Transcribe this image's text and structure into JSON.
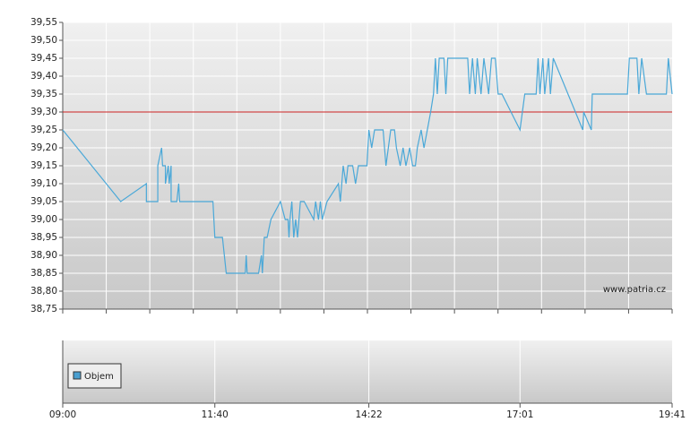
{
  "chart_data": {
    "type": "line",
    "x": [
      "09:00",
      "10:01",
      "10:28",
      "10:28",
      "10:40",
      "10:40",
      "10:44",
      "10:45",
      "10:48",
      "10:48",
      "10:51",
      "10:52",
      "10:54",
      "10:54",
      "11:00",
      "11:02",
      "11:03",
      "11:38",
      "11:40",
      "11:48",
      "11:52",
      "12:12",
      "12:13",
      "12:14",
      "12:26",
      "12:29",
      "12:30",
      "12:32",
      "12:35",
      "12:39",
      "12:49",
      "12:54",
      "12:57",
      "12:58",
      "12:59",
      "13:01",
      "13:03",
      "13:05",
      "13:07",
      "13:10",
      "13:14",
      "13:24",
      "13:26",
      "13:29",
      "13:31",
      "13:33",
      "13:38",
      "13:50",
      "13:52",
      "13:55",
      "13:58",
      "14:00",
      "14:05",
      "14:08",
      "14:11",
      "14:20",
      "14:22",
      "14:25",
      "14:28",
      "14:37",
      "14:40",
      "14:45",
      "14:49",
      "14:51",
      "14:55",
      "14:58",
      "15:01",
      "15:05",
      "15:08",
      "15:11",
      "15:13",
      "15:17",
      "15:20",
      "15:27",
      "15:30",
      "15:32",
      "15:34",
      "15:36",
      "15:41",
      "15:43",
      "15:45",
      "16:06",
      "16:08",
      "16:11",
      "16:14",
      "16:16",
      "16:20",
      "16:23",
      "16:28",
      "16:31",
      "16:35",
      "16:38",
      "16:42",
      "17:01",
      "17:06",
      "17:18",
      "17:20",
      "17:22",
      "17:25",
      "17:27",
      "17:31",
      "17:33",
      "17:36",
      "18:07",
      "18:08",
      "18:16",
      "18:17",
      "18:54",
      "18:56",
      "19:04",
      "19:06",
      "19:09",
      "19:14",
      "19:35",
      "19:37",
      "19:41"
    ],
    "series": [
      {
        "color": "#4aa8d8",
        "values": [
          39.25,
          39.05,
          39.1,
          39.05,
          39.05,
          39.15,
          39.2,
          39.15,
          39.15,
          39.1,
          39.15,
          39.1,
          39.15,
          39.05,
          39.05,
          39.1,
          39.05,
          39.05,
          38.95,
          38.95,
          38.85,
          38.85,
          38.9,
          38.85,
          38.85,
          38.9,
          38.85,
          38.95,
          38.95,
          39.0,
          39.05,
          39.0,
          39.0,
          38.95,
          39.0,
          39.05,
          38.95,
          39.0,
          38.95,
          39.05,
          39.05,
          39.0,
          39.05,
          39.0,
          39.05,
          39.0,
          39.05,
          39.1,
          39.05,
          39.15,
          39.1,
          39.15,
          39.15,
          39.1,
          39.15,
          39.15,
          39.25,
          39.2,
          39.25,
          39.25,
          39.15,
          39.25,
          39.25,
          39.2,
          39.15,
          39.2,
          39.15,
          39.2,
          39.15,
          39.15,
          39.2,
          39.25,
          39.2,
          39.3,
          39.35,
          39.45,
          39.35,
          39.45,
          39.45,
          39.35,
          39.45,
          39.45,
          39.35,
          39.45,
          39.35,
          39.45,
          39.35,
          39.45,
          39.35,
          39.45,
          39.45,
          39.35,
          39.35,
          39.25,
          39.35,
          39.35,
          39.45,
          39.35,
          39.45,
          39.35,
          39.45,
          39.35,
          39.45,
          39.25,
          39.3,
          39.25,
          39.35,
          39.35,
          39.45,
          39.45,
          39.35,
          39.45,
          39.35,
          39.35,
          39.45,
          39.35
        ]
      }
    ],
    "ylim": [
      38.75,
      39.55
    ],
    "yticks": [
      {
        "value": 38.75,
        "label": "38,75"
      },
      {
        "value": 38.8,
        "label": "38,80"
      },
      {
        "value": 38.85,
        "label": "38,85"
      },
      {
        "value": 38.9,
        "label": "38,90"
      },
      {
        "value": 38.95,
        "label": "38,95"
      },
      {
        "value": 39.0,
        "label": "39,00"
      },
      {
        "value": 39.05,
        "label": "39,05"
      },
      {
        "value": 39.1,
        "label": "39,10"
      },
      {
        "value": 39.15,
        "label": "39,15"
      },
      {
        "value": 39.2,
        "label": "39,20"
      },
      {
        "value": 39.25,
        "label": "39,25"
      },
      {
        "value": 39.3,
        "label": "39,30"
      },
      {
        "value": 39.35,
        "label": "39,35"
      },
      {
        "value": 39.4,
        "label": "39,40"
      },
      {
        "value": 39.45,
        "label": "39,45"
      },
      {
        "value": 39.5,
        "label": "39,50"
      },
      {
        "value": 39.55,
        "label": "39,55"
      }
    ],
    "xlim": [
      "09:00",
      "19:41"
    ],
    "xticks": [
      "09:00",
      "11:40",
      "14:22",
      "17:01",
      "19:41"
    ],
    "reference_line": 39.3,
    "reference_color": "#cc2222",
    "grid": true,
    "watermark": "www.patria.cz",
    "volume_panel": {
      "series": [
        {
          "name": "Objem",
          "color": "#4a9fd0"
        }
      ]
    }
  }
}
